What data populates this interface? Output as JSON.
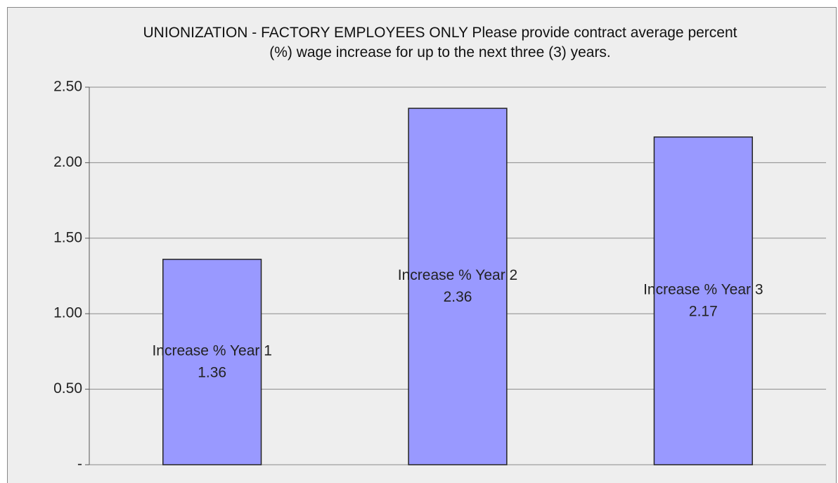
{
  "chart_data": {
    "type": "bar",
    "title": "UNIONIZATION - FACTORY EMPLOYEES ONLY Please provide contract average percent (%) wage increase for up to the next three (3) years.",
    "categories": [
      "Increase % Year 1",
      "Increase % Year 2",
      "Increase % Year 3"
    ],
    "values": [
      1.36,
      2.36,
      2.17
    ],
    "color": "#9999ff",
    "ylim": [
      0,
      2.5
    ],
    "yticks": [
      {
        "value": 0,
        "label": "-"
      },
      {
        "value": 0.5,
        "label": "0.50"
      },
      {
        "value": 1,
        "label": "1.00"
      },
      {
        "value": 1.5,
        "label": "1.50"
      },
      {
        "value": 2,
        "label": "2.00"
      },
      {
        "value": 2.5,
        "label": "2.50"
      }
    ],
    "grid": true
  }
}
